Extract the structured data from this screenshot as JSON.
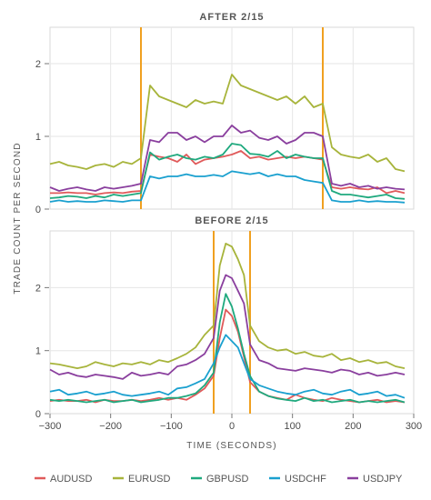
{
  "chart_data": [
    {
      "type": "line",
      "title": "AFTER 2/15",
      "xlim": [
        -300,
        300
      ],
      "ylim": [
        0,
        2.5
      ],
      "yticks": [
        0,
        1,
        2
      ],
      "markers": [
        -150,
        150
      ],
      "series": [
        {
          "name": "AUDUSD",
          "color": "#e05a5a",
          "x": [
            -300,
            -285,
            -270,
            -255,
            -240,
            -225,
            -210,
            -195,
            -180,
            -165,
            -150,
            -135,
            -120,
            -105,
            -90,
            -75,
            -60,
            -45,
            -30,
            -15,
            0,
            15,
            30,
            45,
            60,
            75,
            90,
            105,
            120,
            135,
            150,
            165,
            180,
            195,
            210,
            225,
            240,
            255,
            270,
            285
          ],
          "y": [
            0.22,
            0.22,
            0.23,
            0.22,
            0.22,
            0.2,
            0.22,
            0.23,
            0.22,
            0.24,
            0.25,
            0.75,
            0.72,
            0.7,
            0.65,
            0.75,
            0.62,
            0.68,
            0.7,
            0.72,
            0.75,
            0.8,
            0.7,
            0.72,
            0.68,
            0.7,
            0.72,
            0.7,
            0.72,
            0.7,
            0.68,
            0.3,
            0.28,
            0.3,
            0.28,
            0.27,
            0.3,
            0.22,
            0.25,
            0.22
          ]
        },
        {
          "name": "EURUSD",
          "color": "#a7b43b",
          "x": [
            -300,
            -285,
            -270,
            -255,
            -240,
            -225,
            -210,
            -195,
            -180,
            -165,
            -150,
            -135,
            -120,
            -105,
            -90,
            -75,
            -60,
            -45,
            -30,
            -15,
            0,
            15,
            30,
            45,
            60,
            75,
            90,
            105,
            120,
            135,
            150,
            165,
            180,
            195,
            210,
            225,
            240,
            255,
            270,
            285
          ],
          "y": [
            0.62,
            0.65,
            0.6,
            0.58,
            0.55,
            0.6,
            0.62,
            0.58,
            0.65,
            0.62,
            0.7,
            1.7,
            1.55,
            1.5,
            1.45,
            1.4,
            1.5,
            1.45,
            1.48,
            1.45,
            1.85,
            1.7,
            1.65,
            1.6,
            1.55,
            1.5,
            1.55,
            1.45,
            1.55,
            1.4,
            1.45,
            0.85,
            0.75,
            0.72,
            0.7,
            0.75,
            0.65,
            0.7,
            0.55,
            0.52
          ]
        },
        {
          "name": "GBPUSD",
          "color": "#1fa97e",
          "x": [
            -300,
            -285,
            -270,
            -255,
            -240,
            -225,
            -210,
            -195,
            -180,
            -165,
            -150,
            -135,
            -120,
            -105,
            -90,
            -75,
            -60,
            -45,
            -30,
            -15,
            0,
            15,
            30,
            45,
            60,
            75,
            90,
            105,
            120,
            135,
            150,
            165,
            180,
            195,
            210,
            225,
            240,
            255,
            270,
            285
          ],
          "y": [
            0.15,
            0.16,
            0.18,
            0.17,
            0.15,
            0.18,
            0.16,
            0.2,
            0.18,
            0.2,
            0.22,
            0.78,
            0.68,
            0.72,
            0.75,
            0.7,
            0.68,
            0.72,
            0.7,
            0.75,
            0.9,
            0.88,
            0.76,
            0.75,
            0.72,
            0.8,
            0.7,
            0.75,
            0.72,
            0.7,
            0.7,
            0.25,
            0.2,
            0.2,
            0.18,
            0.16,
            0.18,
            0.2,
            0.15,
            0.14
          ]
        },
        {
          "name": "USDCHF",
          "color": "#1aa0cf",
          "x": [
            -300,
            -285,
            -270,
            -255,
            -240,
            -225,
            -210,
            -195,
            -180,
            -165,
            -150,
            -135,
            -120,
            -105,
            -90,
            -75,
            -60,
            -45,
            -30,
            -15,
            0,
            15,
            30,
            45,
            60,
            75,
            90,
            105,
            120,
            135,
            150,
            165,
            180,
            195,
            210,
            225,
            240,
            255,
            270,
            285
          ],
          "y": [
            0.1,
            0.12,
            0.1,
            0.11,
            0.1,
            0.1,
            0.12,
            0.11,
            0.1,
            0.12,
            0.12,
            0.45,
            0.42,
            0.45,
            0.45,
            0.48,
            0.45,
            0.45,
            0.47,
            0.45,
            0.52,
            0.5,
            0.48,
            0.5,
            0.45,
            0.48,
            0.45,
            0.45,
            0.4,
            0.38,
            0.36,
            0.12,
            0.1,
            0.1,
            0.12,
            0.1,
            0.11,
            0.1,
            0.1,
            0.09
          ]
        },
        {
          "name": "USDJPY",
          "color": "#8a3f9e",
          "x": [
            -300,
            -285,
            -270,
            -255,
            -240,
            -225,
            -210,
            -195,
            -180,
            -165,
            -150,
            -135,
            -120,
            -105,
            -90,
            -75,
            -60,
            -45,
            -30,
            -15,
            0,
            15,
            30,
            45,
            60,
            75,
            90,
            105,
            120,
            135,
            150,
            165,
            180,
            195,
            210,
            225,
            240,
            255,
            270,
            285
          ],
          "y": [
            0.3,
            0.25,
            0.28,
            0.3,
            0.27,
            0.25,
            0.3,
            0.28,
            0.3,
            0.32,
            0.35,
            0.95,
            0.92,
            1.05,
            1.05,
            0.95,
            1.0,
            0.92,
            1.0,
            1.0,
            1.15,
            1.05,
            1.08,
            0.98,
            0.95,
            1.0,
            0.9,
            0.95,
            1.05,
            1.05,
            1.0,
            0.35,
            0.32,
            0.35,
            0.3,
            0.32,
            0.28,
            0.3,
            0.28,
            0.27
          ]
        }
      ]
    },
    {
      "type": "line",
      "title": "BEFORE 2/15",
      "xlim": [
        -300,
        300
      ],
      "ylim": [
        0,
        2.9
      ],
      "yticks": [
        0,
        1,
        2
      ],
      "markers": [
        -30,
        30
      ],
      "series": [
        {
          "name": "AUDUSD",
          "color": "#e05a5a",
          "x": [
            -300,
            -285,
            -270,
            -255,
            -240,
            -225,
            -210,
            -195,
            -180,
            -165,
            -150,
            -135,
            -120,
            -105,
            -90,
            -75,
            -60,
            -45,
            -30,
            -20,
            -10,
            0,
            10,
            20,
            30,
            45,
            60,
            75,
            90,
            105,
            120,
            135,
            150,
            165,
            180,
            195,
            210,
            225,
            240,
            255,
            270,
            285
          ],
          "y": [
            0.2,
            0.22,
            0.2,
            0.2,
            0.22,
            0.18,
            0.22,
            0.2,
            0.2,
            0.22,
            0.2,
            0.22,
            0.25,
            0.22,
            0.25,
            0.22,
            0.3,
            0.4,
            0.6,
            1.2,
            1.65,
            1.55,
            1.3,
            0.9,
            0.5,
            0.35,
            0.28,
            0.25,
            0.22,
            0.3,
            0.25,
            0.22,
            0.2,
            0.25,
            0.22,
            0.2,
            0.18,
            0.2,
            0.22,
            0.18,
            0.2,
            0.18
          ]
        },
        {
          "name": "EURUSD",
          "color": "#a7b43b",
          "x": [
            -300,
            -285,
            -270,
            -255,
            -240,
            -225,
            -210,
            -195,
            -180,
            -165,
            -150,
            -135,
            -120,
            -105,
            -90,
            -75,
            -60,
            -45,
            -30,
            -20,
            -10,
            0,
            10,
            20,
            30,
            45,
            60,
            75,
            90,
            105,
            120,
            135,
            150,
            165,
            180,
            195,
            210,
            225,
            240,
            255,
            270,
            285
          ],
          "y": [
            0.8,
            0.78,
            0.75,
            0.72,
            0.75,
            0.82,
            0.78,
            0.75,
            0.8,
            0.78,
            0.82,
            0.78,
            0.85,
            0.82,
            0.88,
            0.95,
            1.05,
            1.25,
            1.4,
            2.35,
            2.7,
            2.65,
            2.45,
            2.2,
            1.4,
            1.15,
            1.05,
            1.0,
            1.02,
            0.95,
            0.98,
            0.92,
            0.9,
            0.95,
            0.85,
            0.88,
            0.82,
            0.85,
            0.8,
            0.82,
            0.75,
            0.72
          ]
        },
        {
          "name": "GBPUSD",
          "color": "#1fa97e",
          "x": [
            -300,
            -285,
            -270,
            -255,
            -240,
            -225,
            -210,
            -195,
            -180,
            -165,
            -150,
            -135,
            -120,
            -105,
            -90,
            -75,
            -60,
            -45,
            -30,
            -20,
            -10,
            0,
            10,
            20,
            30,
            45,
            60,
            75,
            90,
            105,
            120,
            135,
            150,
            165,
            180,
            195,
            210,
            225,
            240,
            255,
            270,
            285
          ],
          "y": [
            0.22,
            0.2,
            0.22,
            0.2,
            0.18,
            0.2,
            0.22,
            0.18,
            0.2,
            0.22,
            0.18,
            0.2,
            0.22,
            0.25,
            0.25,
            0.28,
            0.32,
            0.45,
            0.65,
            1.45,
            1.9,
            1.7,
            1.35,
            0.95,
            0.6,
            0.35,
            0.28,
            0.24,
            0.22,
            0.2,
            0.25,
            0.2,
            0.22,
            0.18,
            0.2,
            0.22,
            0.18,
            0.2,
            0.18,
            0.2,
            0.22,
            0.18
          ]
        },
        {
          "name": "USDCHF",
          "color": "#1aa0cf",
          "x": [
            -300,
            -285,
            -270,
            -255,
            -240,
            -225,
            -210,
            -195,
            -180,
            -165,
            -150,
            -135,
            -120,
            -105,
            -90,
            -75,
            -60,
            -45,
            -30,
            -20,
            -10,
            0,
            10,
            20,
            30,
            45,
            60,
            75,
            90,
            105,
            120,
            135,
            150,
            165,
            180,
            195,
            210,
            225,
            240,
            255,
            270,
            285
          ],
          "y": [
            0.35,
            0.38,
            0.3,
            0.32,
            0.35,
            0.3,
            0.32,
            0.35,
            0.3,
            0.28,
            0.3,
            0.32,
            0.35,
            0.3,
            0.4,
            0.42,
            0.48,
            0.55,
            0.8,
            1.05,
            1.25,
            1.15,
            1.05,
            0.8,
            0.55,
            0.45,
            0.4,
            0.35,
            0.32,
            0.3,
            0.35,
            0.38,
            0.32,
            0.3,
            0.35,
            0.38,
            0.3,
            0.32,
            0.35,
            0.28,
            0.3,
            0.25
          ]
        },
        {
          "name": "USDJPY",
          "color": "#8a3f9e",
          "x": [
            -300,
            -285,
            -270,
            -255,
            -240,
            -225,
            -210,
            -195,
            -180,
            -165,
            -150,
            -135,
            -120,
            -105,
            -90,
            -75,
            -60,
            -45,
            -30,
            -20,
            -10,
            0,
            10,
            20,
            30,
            45,
            60,
            75,
            90,
            105,
            120,
            135,
            150,
            165,
            180,
            195,
            210,
            225,
            240,
            255,
            270,
            285
          ],
          "y": [
            0.7,
            0.62,
            0.65,
            0.6,
            0.58,
            0.62,
            0.6,
            0.58,
            0.55,
            0.65,
            0.6,
            0.62,
            0.65,
            0.62,
            0.75,
            0.78,
            0.85,
            0.95,
            1.2,
            1.95,
            2.2,
            2.15,
            1.95,
            1.75,
            1.1,
            0.85,
            0.8,
            0.72,
            0.7,
            0.68,
            0.72,
            0.7,
            0.68,
            0.65,
            0.7,
            0.68,
            0.62,
            0.65,
            0.6,
            0.62,
            0.65,
            0.62
          ]
        }
      ]
    }
  ],
  "axes": {
    "xlabel": "TIME (SECONDS)",
    "ylabel": "TRADE COUNT PER SECOND",
    "xticks": [
      -300,
      -200,
      -100,
      0,
      100,
      200,
      300
    ],
    "xtick_labels": [
      "−300",
      "−200",
      "−100",
      "0",
      "100",
      "200",
      "300"
    ]
  },
  "legend": {
    "placement": "bottom",
    "items": [
      {
        "name": "AUDUSD",
        "color": "#e05a5a"
      },
      {
        "name": "EURUSD",
        "color": "#a7b43b"
      },
      {
        "name": "GBPUSD",
        "color": "#1fa97e"
      },
      {
        "name": "USDCHF",
        "color": "#1aa0cf"
      },
      {
        "name": "USDJPY",
        "color": "#8a3f9e"
      }
    ]
  },
  "marker_color": "#f0a020",
  "grid": true
}
